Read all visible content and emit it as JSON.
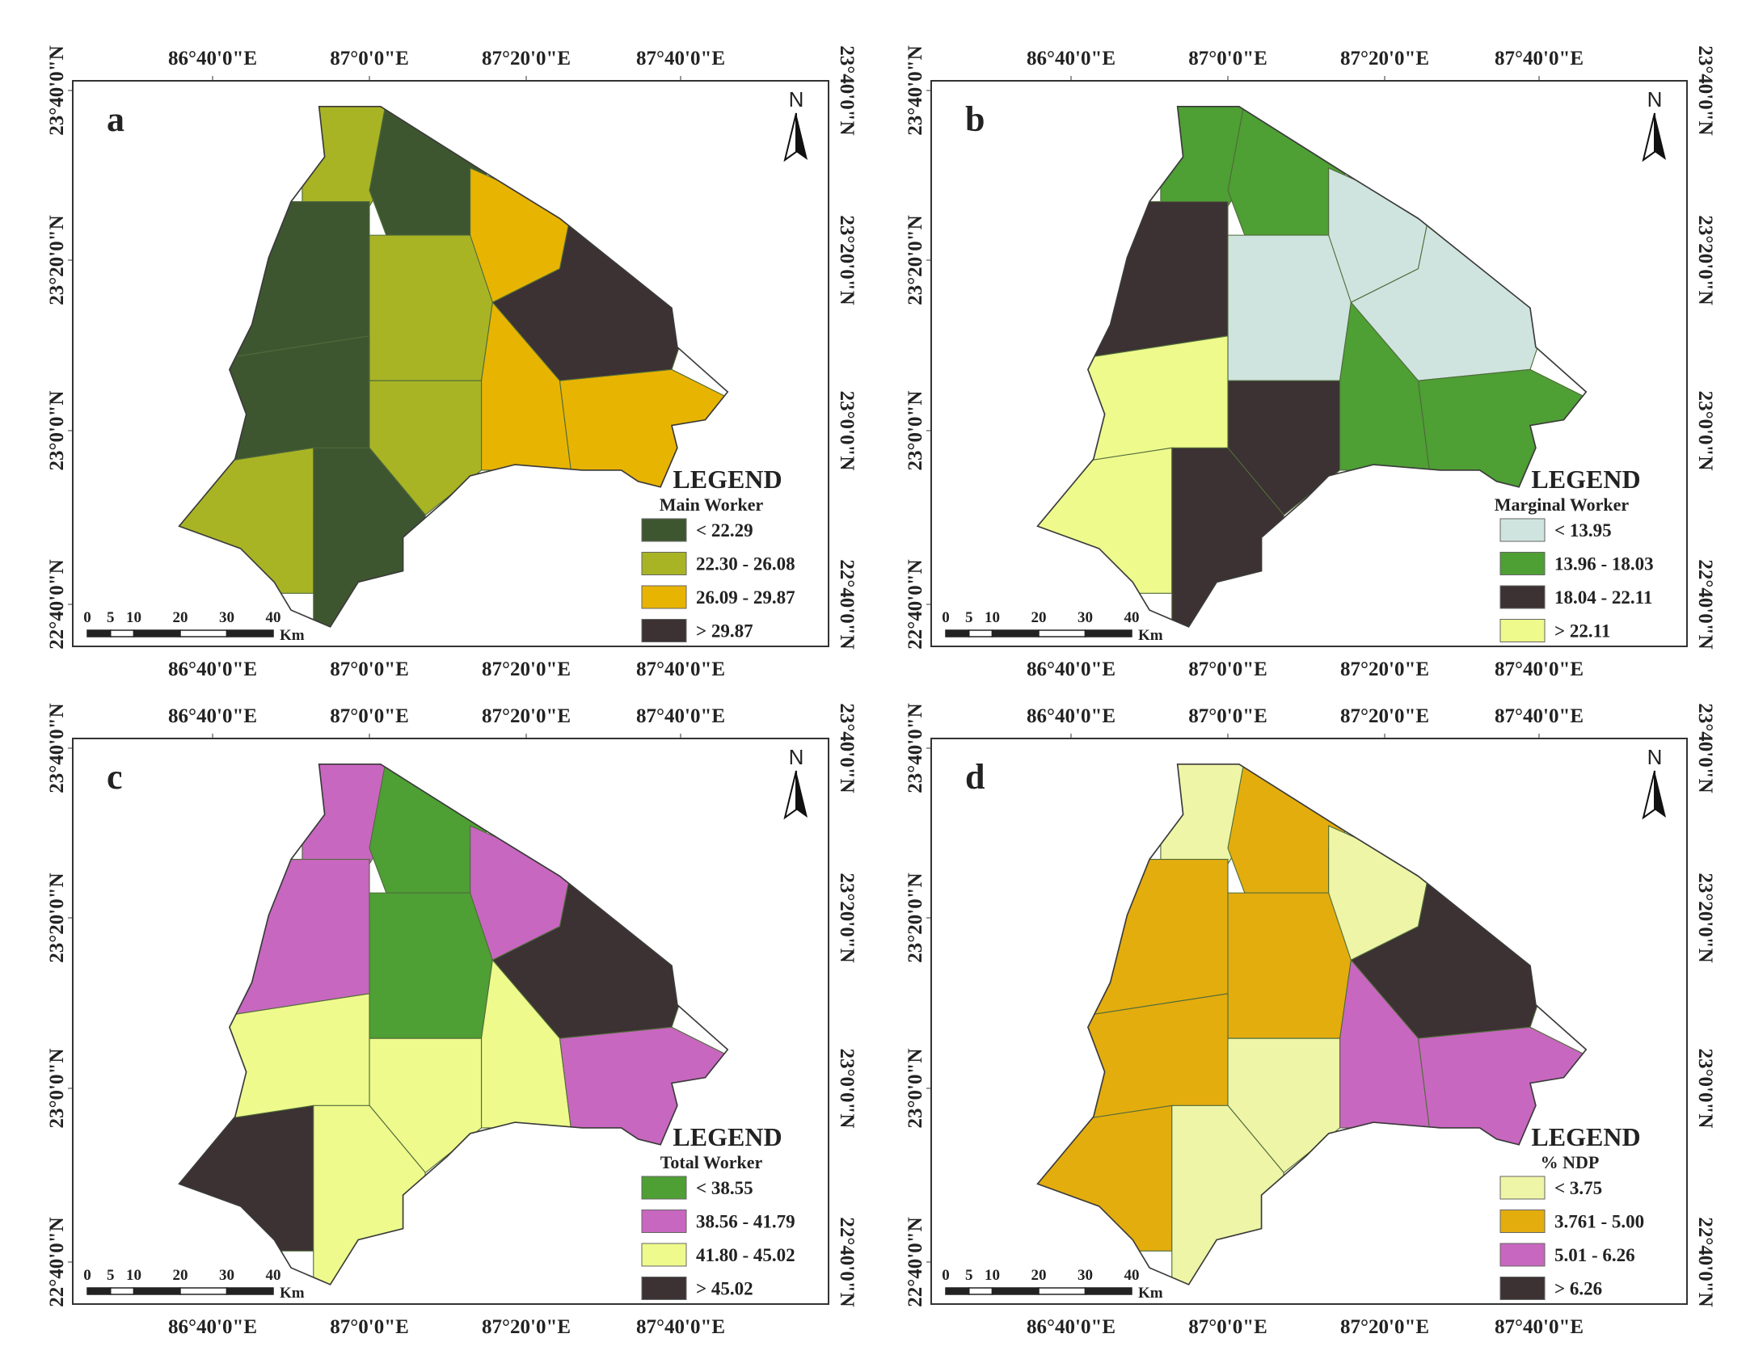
{
  "panels": [
    {
      "label": "a",
      "north": "N",
      "longitude_labels": [
        "86°40'0\"E",
        "87°0'0\"E",
        "87°20'0\"E",
        "87°40'0\"E"
      ],
      "latitude_labels": [
        "23°40'0\"N",
        "23°20'0\"N",
        "23°0'0\"N",
        "22°40'0\"N"
      ],
      "legend": {
        "title": "LEGEND",
        "subtitle": "Main Worker",
        "classes": [
          {
            "label": "< 22.29",
            "color": "#3e5630"
          },
          {
            "label": "22.30 - 26.08",
            "color": "#a9b425"
          },
          {
            "label": "26.09 - 29.87",
            "color": "#e8b402"
          },
          {
            "label": "> 29.87",
            "color": "#3c3133"
          }
        ]
      },
      "scale_bar": {
        "ticks": [
          0,
          5,
          10,
          20,
          30,
          40
        ],
        "unit": "Km"
      }
    },
    {
      "label": "b",
      "north": "N",
      "longitude_labels": [
        "86°40'0\"E",
        "87°0'0\"E",
        "87°20'0\"E",
        "87°40'0\"E"
      ],
      "latitude_labels": [
        "23°40'0\"N",
        "23°20'0\"N",
        "23°0'0\"N",
        "22°40'0\"N"
      ],
      "legend": {
        "title": "LEGEND",
        "subtitle": "Marginal Worker",
        "classes": [
          {
            "label": "< 13.95",
            "color": "#cfe4df"
          },
          {
            "label": "13.96 - 18.03",
            "color": "#4e9f34"
          },
          {
            "label": "18.04 - 22.11",
            "color": "#3c3133"
          },
          {
            "label": "> 22.11",
            "color": "#eefa8c"
          }
        ]
      },
      "scale_bar": {
        "ticks": [
          0,
          5,
          10,
          20,
          30,
          40
        ],
        "unit": "Km"
      }
    },
    {
      "label": "c",
      "north": "N",
      "longitude_labels": [
        "86°40'0\"E",
        "87°0'0\"E",
        "87°20'0\"E",
        "87°40'0\"E"
      ],
      "latitude_labels": [
        "23°40'0\"N",
        "23°20'0\"N",
        "23°0'0\"N",
        "22°40'0\"N"
      ],
      "legend": {
        "title": "LEGEND",
        "subtitle": "Total Worker",
        "classes": [
          {
            "label": "< 38.55",
            "color": "#4e9f34"
          },
          {
            "label": "38.56 - 41.79",
            "color": "#c867bf"
          },
          {
            "label": "41.80 - 45.02",
            "color": "#eefa8c"
          },
          {
            "label": "> 45.02",
            "color": "#3c3133"
          }
        ]
      },
      "scale_bar": {
        "ticks": [
          0,
          5,
          10,
          20,
          30,
          40
        ],
        "unit": "Km"
      }
    },
    {
      "label": "d",
      "north": "N",
      "longitude_labels": [
        "86°40'0\"E",
        "87°0'0\"E",
        "87°20'0\"E",
        "87°40'0\"E"
      ],
      "latitude_labels": [
        "23°40'0\"N",
        "23°20'0\"N",
        "23°0'0\"N",
        "22°40'0\"N"
      ],
      "legend": {
        "title": "LEGEND",
        "subtitle": "% NDP",
        "classes": [
          {
            "label": "< 3.75",
            "color": "#eef5a6"
          },
          {
            "label": "3.761 - 5.00",
            "color": "#e3ad0e"
          },
          {
            "label": "5.01 - 6.26",
            "color": "#c867bf"
          },
          {
            "label": "> 6.26",
            "color": "#3c3133"
          }
        ]
      },
      "scale_bar": {
        "ticks": [
          0,
          5,
          10,
          20,
          30,
          40
        ],
        "unit": "Km"
      }
    }
  ]
}
